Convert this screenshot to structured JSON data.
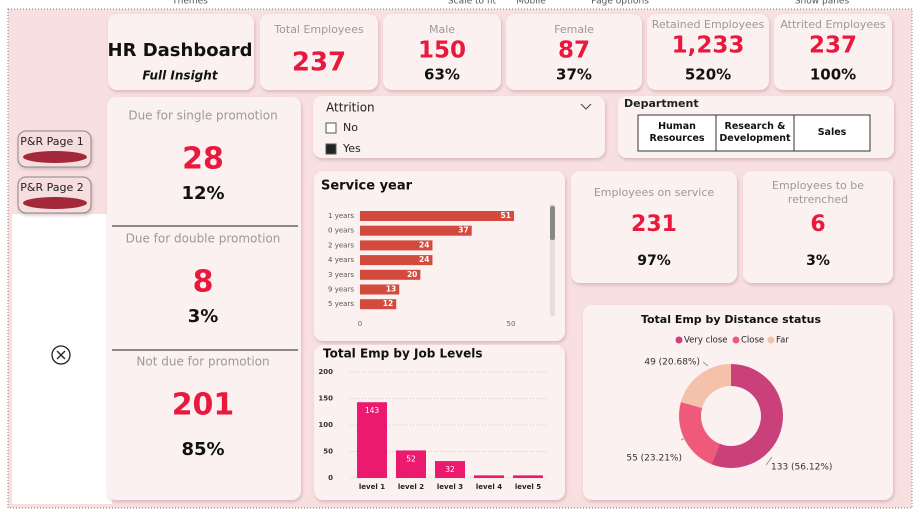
{
  "toolbar": [
    "Themes",
    "Scale to fit",
    "Mobile",
    "Page options",
    "Show panes"
  ],
  "header": {
    "title": "HR Dashboard",
    "subtitle": "Full Insight"
  },
  "kpis": [
    {
      "label": "Total Employees",
      "value": "237"
    },
    {
      "label": "Male",
      "value": "150",
      "pct": "63%"
    },
    {
      "label": "Female",
      "value": "87",
      "pct": "37%"
    },
    {
      "label": "Retained Employees",
      "value": "1,233",
      "pct": "520%"
    },
    {
      "label": "Attrited Employees",
      "value": "237",
      "pct": "100%"
    }
  ],
  "nav_buttons": [
    "P&R Page 1",
    "P&R Page 2"
  ],
  "promotion": [
    {
      "label": "Due for single promotion",
      "value": "28",
      "pct": "12%"
    },
    {
      "label": "Due for double promotion",
      "value": "8",
      "pct": "3%"
    },
    {
      "label": "Not due for promotion",
      "value": "201",
      "pct": "85%"
    }
  ],
  "attrition_filter": {
    "title": "Attrition",
    "options": [
      {
        "label": "No",
        "checked": false
      },
      {
        "label": "Yes",
        "checked": true
      }
    ]
  },
  "department": {
    "title": "Department",
    "options": [
      "Human Resources",
      "Research & Development",
      "Sales"
    ]
  },
  "service_kpis": [
    {
      "label": "Employees on service",
      "value": "231",
      "pct": "97%"
    },
    {
      "label": "Employees to be retrenched",
      "value": "6",
      "pct": "3%"
    }
  ],
  "chart_data": [
    {
      "type": "hbar",
      "title": "Service year",
      "categories": [
        "1 years",
        "0 years",
        "2 years",
        "4 years",
        "3 years",
        "9 years",
        "5 years"
      ],
      "values": [
        51,
        37,
        24,
        24,
        20,
        13,
        12
      ],
      "color": "#d24b3d",
      "xlim": [
        0,
        52
      ],
      "xticks": [
        0,
        50
      ]
    },
    {
      "type": "bar",
      "title": "Total Emp by Job Levels",
      "categories": [
        "level 1",
        "level 2",
        "level 3",
        "level 4",
        "level 5"
      ],
      "values": [
        143,
        52,
        32,
        5,
        5
      ],
      "color": "#ec1a6e",
      "ylim": [
        0,
        200
      ],
      "yticks": [
        0,
        50,
        100,
        150,
        200
      ],
      "grid": true
    },
    {
      "type": "donut",
      "title": "Total Emp by Distance status",
      "categories": [
        "Very close",
        "Close",
        "Far"
      ],
      "values": [
        133,
        55,
        49
      ],
      "value_labels": [
        "133 (56.12%)",
        "55 (23.21%)",
        "49 (20.68%)"
      ],
      "colors": [
        "#c9407a",
        "#ef5a7a",
        "#f4c2aa"
      ]
    }
  ]
}
